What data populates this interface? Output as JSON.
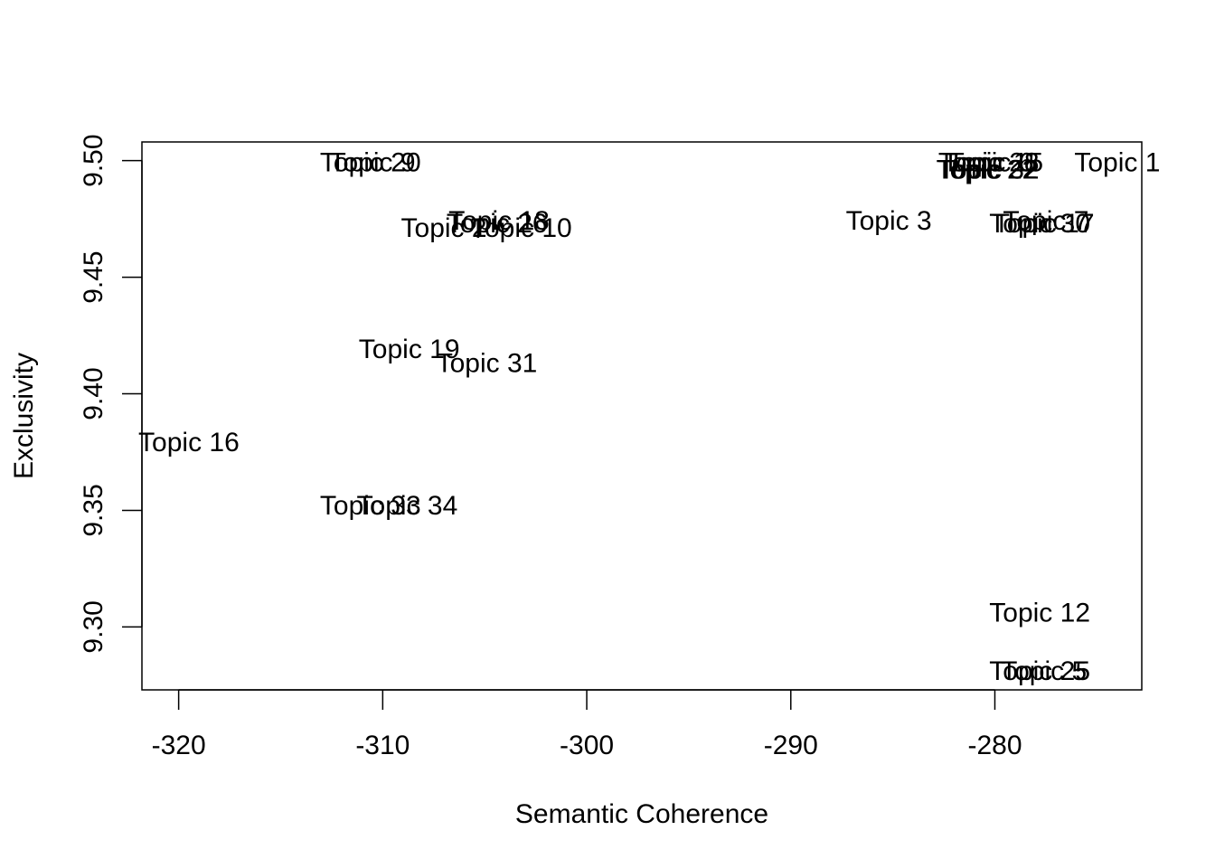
{
  "chart_data": {
    "type": "scatter",
    "title": "",
    "xlabel": "Semantic Coherence",
    "ylabel": "Exclusivity",
    "xlim": [
      -321.8,
      -272.8
    ],
    "ylim": [
      9.273,
      9.508
    ],
    "xticks": [
      -320,
      -310,
      -300,
      -290,
      -280
    ],
    "xtick_labels": [
      "-320",
      "-310",
      "-300",
      "-290",
      "-280"
    ],
    "yticks": [
      9.3,
      9.35,
      9.4,
      9.45,
      9.5
    ],
    "ytick_labels": [
      "9.30",
      "9.35",
      "9.40",
      "9.45",
      "9.50"
    ],
    "grid": false,
    "legend": "none",
    "marker": "text-label",
    "points": [
      {
        "label": "Topic 20",
        "x": -310.6,
        "y": 9.499
      },
      {
        "label": "Topic 9",
        "x": -310.5,
        "y": 9.499
      },
      {
        "label": "Topic 18",
        "x": -304.3,
        "y": 9.474
      },
      {
        "label": "Topic 26",
        "x": -304.4,
        "y": 9.473
      },
      {
        "label": "Topic 2",
        "x": -307.0,
        "y": 9.471
      },
      {
        "label": "Topic 10",
        "x": -303.2,
        "y": 9.471
      },
      {
        "label": "Topic 19",
        "x": -308.7,
        "y": 9.419
      },
      {
        "label": "Topic 31",
        "x": -304.9,
        "y": 9.413
      },
      {
        "label": "Topic 16",
        "x": -319.5,
        "y": 9.379
      },
      {
        "label": "Topic 33",
        "x": -310.6,
        "y": 9.352
      },
      {
        "label": "Topic 34",
        "x": -308.8,
        "y": 9.352
      },
      {
        "label": "Topic 3",
        "x": -285.2,
        "y": 9.474
      },
      {
        "label": "Topic 28",
        "x": -280.3,
        "y": 9.499
      },
      {
        "label": "Topic 6",
        "x": -280.2,
        "y": 9.499
      },
      {
        "label": "Topic 15",
        "x": -280.1,
        "y": 9.499
      },
      {
        "label": "Topic 22",
        "x": -280.4,
        "y": 9.496
      },
      {
        "label": "Topic 32",
        "x": -280.3,
        "y": 9.496
      },
      {
        "label": "Topic 1",
        "x": -274.0,
        "y": 9.499
      },
      {
        "label": "Topic 7",
        "x": -277.5,
        "y": 9.474
      },
      {
        "label": "Topic 30",
        "x": -277.8,
        "y": 9.473
      },
      {
        "label": "Topic 17",
        "x": -277.6,
        "y": 9.473
      },
      {
        "label": "Topic 12",
        "x": -277.8,
        "y": 9.306
      },
      {
        "label": "Topic 25",
        "x": -277.8,
        "y": 9.281
      },
      {
        "label": "Topic 5",
        "x": -277.6,
        "y": 9.281
      }
    ]
  }
}
